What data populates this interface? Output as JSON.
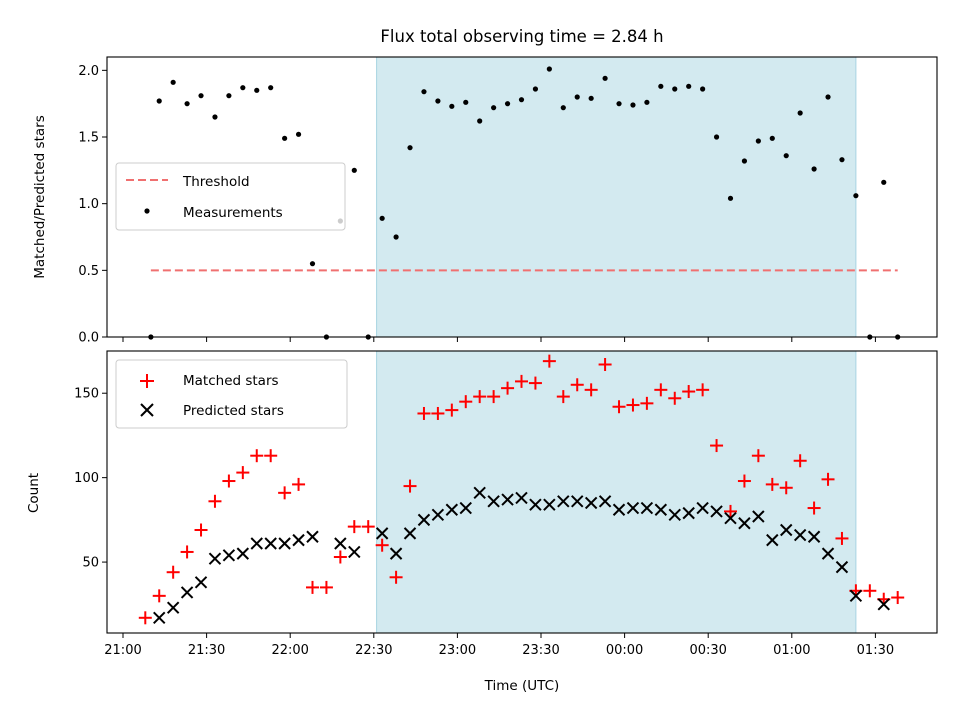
{
  "chart_data": [
    {
      "type": "scatter",
      "title": "Flux total observing time = 2.84 h",
      "xlabel": "",
      "ylabel": "Matched/Predicted stars",
      "ylim": [
        0,
        2.1
      ],
      "y_ticks": [
        "0.0",
        "0.5",
        "1.0",
        "1.5",
        "2.0"
      ],
      "x_range": [
        "21:00",
        "01:50"
      ],
      "shaded_region": {
        "x_start": "22:31",
        "x_end": "01:23",
        "color": "#d3eaf0"
      },
      "legend_position": "center-left",
      "threshold": {
        "name": "Threshold",
        "y": 0.5,
        "x_start": "21:10",
        "x_end": "01:38",
        "color": "#f07070"
      },
      "series": [
        {
          "name": "Measurements",
          "marker": "dot",
          "color": "#000000",
          "x": [
            "21:10",
            "21:13",
            "21:18",
            "21:23",
            "21:28",
            "21:33",
            "21:38",
            "21:43",
            "21:48",
            "21:53",
            "21:58",
            "22:03",
            "22:08",
            "22:13",
            "22:18",
            "22:23",
            "22:28",
            "22:33",
            "22:38",
            "22:43",
            "22:48",
            "22:53",
            "22:58",
            "23:03",
            "23:08",
            "23:13",
            "23:18",
            "23:23",
            "23:28",
            "23:33",
            "23:38",
            "23:43",
            "23:48",
            "23:53",
            "23:58",
            "00:03",
            "00:08",
            "00:13",
            "00:18",
            "00:23",
            "00:28",
            "00:33",
            "00:38",
            "00:43",
            "00:48",
            "00:53",
            "00:58",
            "01:03",
            "01:08",
            "01:13",
            "01:18",
            "01:23",
            "01:28",
            "01:33",
            "01:38"
          ],
          "y": [
            0.0,
            1.77,
            1.91,
            1.75,
            1.81,
            1.65,
            1.81,
            1.87,
            1.85,
            1.87,
            1.49,
            1.52,
            0.55,
            0.0,
            0.87,
            1.25,
            0.0,
            0.89,
            0.75,
            1.42,
            1.84,
            1.77,
            1.73,
            1.76,
            1.62,
            1.72,
            1.75,
            1.78,
            1.86,
            2.01,
            1.72,
            1.8,
            1.79,
            1.94,
            1.75,
            1.74,
            1.76,
            1.88,
            1.86,
            1.88,
            1.86,
            1.5,
            1.04,
            1.32,
            1.47,
            1.49,
            1.36,
            1.68,
            1.26,
            1.8,
            1.33,
            1.06,
            0.0,
            1.16,
            0.0
          ]
        }
      ]
    },
    {
      "type": "scatter",
      "title": "",
      "xlabel": "Time (UTC)",
      "ylabel": "Count",
      "ylim": [
        8,
        175
      ],
      "y_ticks": [
        "50",
        "100",
        "150"
      ],
      "x_ticks": [
        "21:00",
        "21:30",
        "22:00",
        "22:30",
        "23:00",
        "23:30",
        "00:00",
        "00:30",
        "01:00",
        "01:30"
      ],
      "x_range": [
        "21:00",
        "01:50"
      ],
      "shaded_region": {
        "x_start": "22:31",
        "x_end": "01:23",
        "color": "#d3eaf0"
      },
      "legend_position": "top-left",
      "series": [
        {
          "name": "Matched stars",
          "marker": "plus",
          "color": "#ff0000",
          "x": [
            "21:08",
            "21:13",
            "21:18",
            "21:23",
            "21:28",
            "21:33",
            "21:38",
            "21:43",
            "21:48",
            "21:53",
            "21:58",
            "22:03",
            "22:08",
            "22:13",
            "22:18",
            "22:23",
            "22:28",
            "22:33",
            "22:38",
            "22:43",
            "22:48",
            "22:53",
            "22:58",
            "23:03",
            "23:08",
            "23:13",
            "23:18",
            "23:23",
            "23:28",
            "23:33",
            "23:38",
            "23:43",
            "23:48",
            "23:53",
            "23:58",
            "00:03",
            "00:08",
            "00:13",
            "00:18",
            "00:23",
            "00:28",
            "00:33",
            "00:38",
            "00:43",
            "00:48",
            "00:53",
            "00:58",
            "01:03",
            "01:08",
            "01:13",
            "01:18",
            "01:23",
            "01:28",
            "01:33",
            "01:38"
          ],
          "y": [
            17,
            30,
            44,
            56,
            69,
            86,
            98,
            103,
            113,
            113,
            91,
            96,
            35,
            35,
            53,
            71,
            71,
            60,
            41,
            95,
            138,
            138,
            140,
            145,
            148,
            148,
            153,
            157,
            156,
            169,
            148,
            155,
            152,
            167,
            142,
            143,
            144,
            152,
            147,
            151,
            152,
            119,
            80,
            98,
            113,
            96,
            94,
            110,
            82,
            99,
            64,
            33,
            33,
            28,
            29
          ]
        },
        {
          "name": "Predicted stars",
          "marker": "x",
          "color": "#000000",
          "x": [
            "21:13",
            "21:18",
            "21:23",
            "21:28",
            "21:33",
            "21:38",
            "21:43",
            "21:48",
            "21:53",
            "21:58",
            "22:03",
            "22:08",
            "22:18",
            "22:23",
            "22:33",
            "22:38",
            "22:43",
            "22:48",
            "22:53",
            "22:58",
            "23:03",
            "23:08",
            "23:13",
            "23:18",
            "23:23",
            "23:28",
            "23:33",
            "23:38",
            "23:43",
            "23:48",
            "23:53",
            "23:58",
            "00:03",
            "00:08",
            "00:13",
            "00:18",
            "00:23",
            "00:28",
            "00:33",
            "00:38",
            "00:43",
            "00:48",
            "00:53",
            "00:58",
            "01:03",
            "01:08",
            "01:13",
            "01:18",
            "01:23",
            "01:33"
          ],
          "y": [
            17,
            23,
            32,
            38,
            52,
            54,
            55,
            61,
            61,
            61,
            63,
            65,
            61,
            56,
            67,
            55,
            67,
            75,
            78,
            81,
            82,
            91,
            86,
            87,
            88,
            84,
            84,
            86,
            86,
            85,
            86,
            81,
            82,
            82,
            81,
            78,
            79,
            82,
            80,
            76,
            73,
            77,
            63,
            69,
            66,
            65,
            55,
            47,
            30,
            25
          ]
        }
      ]
    }
  ]
}
